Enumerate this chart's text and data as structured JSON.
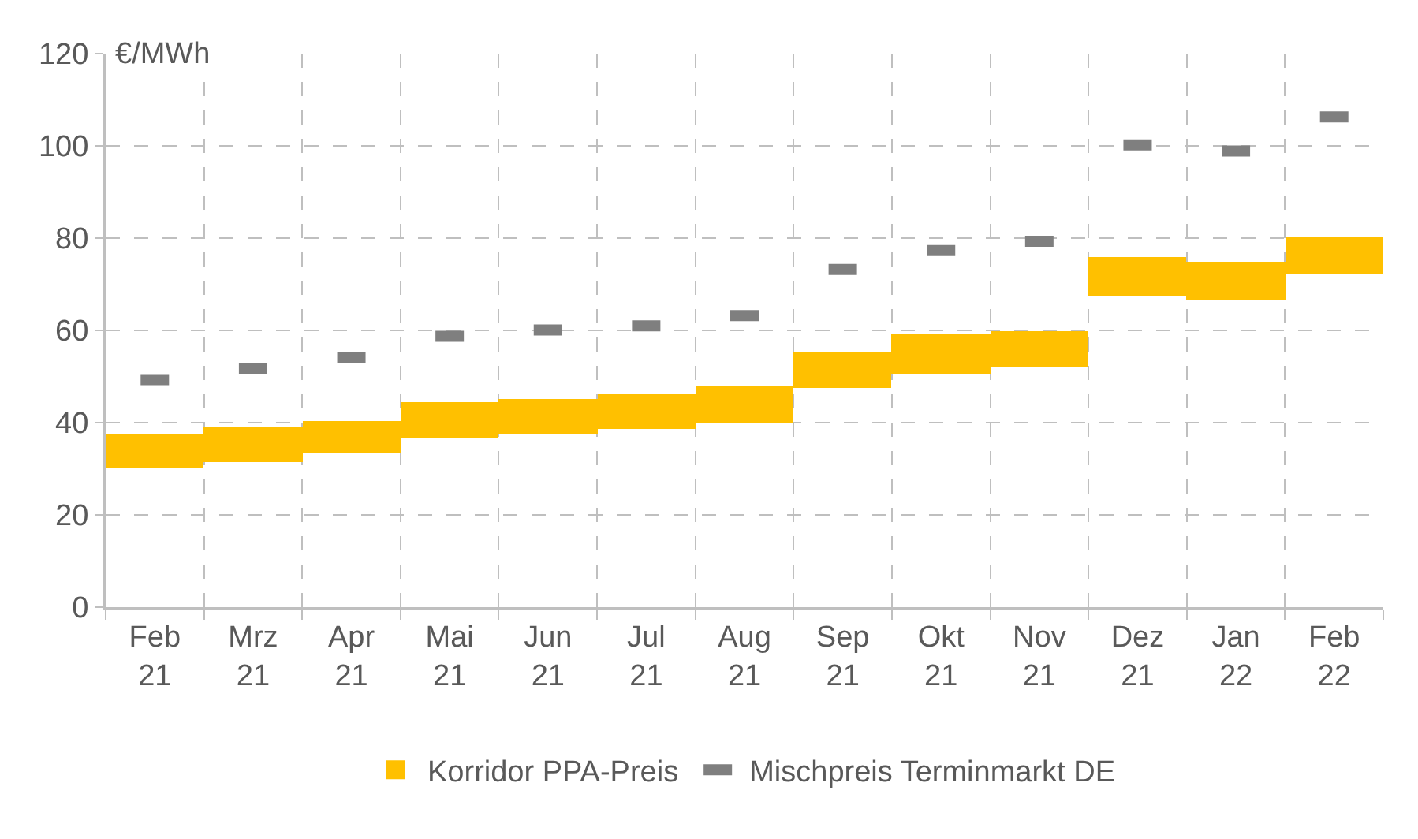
{
  "chart_data": {
    "type": "bar",
    "ylabel": "€/MWh",
    "categories": [
      "Feb\n21",
      "Mrz\n21",
      "Apr\n21",
      "Mai\n21",
      "Jun\n21",
      "Jul\n21",
      "Aug\n21",
      "Sep\n21",
      "Okt\n21",
      "Nov\n21",
      "Dez\n21",
      "Jan\n22",
      "Feb\n22"
    ],
    "series": [
      {
        "name": "Korridor PPA-Preis",
        "color": "#ffc000",
        "base": [
          30,
          31.5,
          33.5,
          36.5,
          37.5,
          38.5,
          40,
          47.5,
          50.5,
          52,
          67.5,
          66.5,
          72
        ],
        "values": [
          7.5,
          7.5,
          7,
          8,
          7.5,
          7.5,
          8,
          8,
          8.5,
          8,
          8.5,
          8.5,
          8.5
        ]
      },
      {
        "name": "Mischpreis Terminmarkt DE",
        "type": "scatter",
        "color": "#7f7f7f",
        "values": [
          49.3,
          51.8,
          54.2,
          58.7,
          60.1,
          61,
          63.2,
          73.2,
          77.3,
          79.3,
          100.2,
          98.9,
          106.3
        ]
      }
    ],
    "ylim": [
      0,
      120
    ],
    "yticks": [
      0,
      20,
      40,
      60,
      80,
      100,
      120
    ],
    "grid": true,
    "legend": "bottom"
  }
}
